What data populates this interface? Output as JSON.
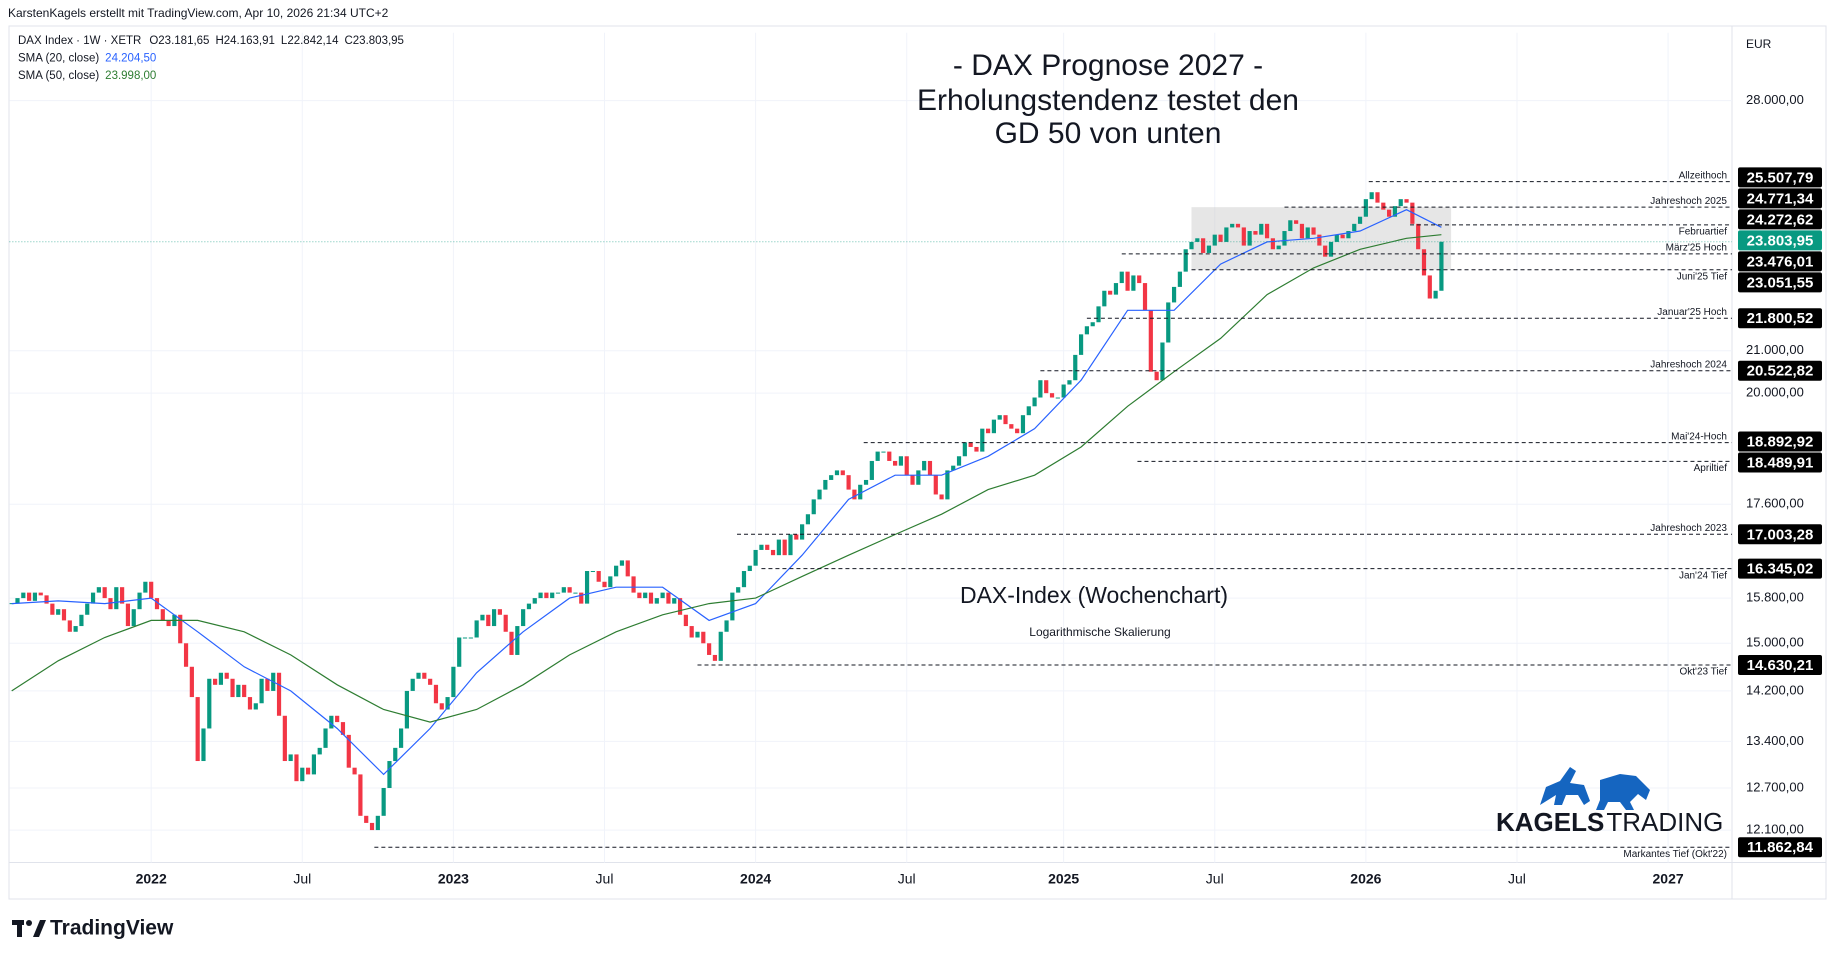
{
  "header": "KarstenKagels erstellt mit TradingView.com, Apr 10, 2026 21:34 UTC+2",
  "footer_brand": "TradingView",
  "chart_data": {
    "type": "candlestick",
    "title_lines": [
      "- DAX Prognose 2027 -",
      "Erholungstendenz testet den",
      "GD 50 von unten"
    ],
    "subtitle": "DAX-Index (Wochenchart)",
    "annotation": "Logarithmische Skalierung",
    "currency": "EUR",
    "legend": {
      "symbol": "DAX Index · 1W · XETR",
      "ohlc": [
        "O23.181,65",
        "H24.163,91",
        "L22.842,14",
        "C23.803,95"
      ]
    },
    "log_scale": true,
    "grid": true,
    "xlim": [
      -0.4,
      296
    ],
    "xticks": [
      {
        "value": 24,
        "label": "2022"
      },
      {
        "value": 50,
        "label": "Jul"
      },
      {
        "value": 76,
        "label": "2023"
      },
      {
        "value": 102,
        "label": "Jul"
      },
      {
        "value": 128,
        "label": "2024"
      },
      {
        "value": 154,
        "label": "Jul"
      },
      {
        "value": 181,
        "label": "2025"
      },
      {
        "value": 207,
        "label": "Jul"
      },
      {
        "value": 233,
        "label": "2026"
      },
      {
        "value": 259,
        "label": "Jul"
      },
      {
        "value": 285,
        "label": "2027"
      }
    ],
    "ylim": [
      11657,
      30273
    ],
    "yticks": [
      {
        "value": 28000,
        "label": "28.000,00"
      },
      {
        "value": 21000,
        "label": "21.000,00"
      },
      {
        "value": 20000,
        "label": "20.000,00"
      },
      {
        "value": 17600,
        "label": "17.600,00"
      },
      {
        "value": 15800,
        "label": "15.800,00"
      },
      {
        "value": 15000,
        "label": "15.000,00"
      },
      {
        "value": 14200,
        "label": "14.200,00"
      },
      {
        "value": 13400,
        "label": "13.400,00"
      },
      {
        "value": 12700,
        "label": "12.700,00"
      },
      {
        "value": 12100,
        "label": "12.100,00"
      }
    ],
    "candles": {
      "up_color": "#089981",
      "down_color": "#f23645",
      "closes": [
        15700,
        15800,
        15900,
        15750,
        15900,
        15850,
        15700,
        15500,
        15600,
        15400,
        15200,
        15300,
        15500,
        15700,
        15900,
        16000,
        15800,
        15600,
        16000,
        15700,
        15300,
        15600,
        15900,
        16100,
        15800,
        15600,
        15400,
        15300,
        15500,
        15000,
        14600,
        14100,
        13100,
        13600,
        14400,
        14300,
        14500,
        14400,
        14100,
        14300,
        14100,
        13900,
        14000,
        14400,
        14200,
        14500,
        13800,
        13100,
        13200,
        12800,
        13000,
        12900,
        13200,
        13300,
        13600,
        13800,
        13700,
        13500,
        13000,
        12900,
        12300,
        12200,
        12100,
        12300,
        12700,
        13100,
        13300,
        13600,
        14200,
        14400,
        14500,
        14400,
        14300,
        14000,
        13900,
        14100,
        14600,
        15100,
        15100,
        15100,
        15400,
        15500,
        15300,
        15600,
        15500,
        15200,
        14800,
        15300,
        15600,
        15700,
        15800,
        15900,
        15800,
        15900,
        15900,
        16000,
        15900,
        15900,
        15700,
        16300,
        16300,
        16100,
        16000,
        16200,
        16400,
        16500,
        16200,
        15900,
        15800,
        15900,
        15700,
        15800,
        15900,
        15700,
        15800,
        15500,
        15300,
        15100,
        15200,
        15000,
        14800,
        14700,
        15200,
        15400,
        15900,
        16000,
        16300,
        16400,
        16700,
        16800,
        16700,
        16600,
        16900,
        16600,
        17000,
        16900,
        17200,
        17400,
        17700,
        17900,
        18100,
        18200,
        18300,
        18200,
        17900,
        17700,
        18000,
        18100,
        18500,
        18700,
        18700,
        18500,
        18400,
        18600,
        18200,
        18000,
        18300,
        18500,
        18200,
        17800,
        17700,
        18300,
        18400,
        18600,
        18900,
        18800,
        18700,
        19200,
        19100,
        19400,
        19500,
        19300,
        19200,
        19100,
        19500,
        19700,
        19900,
        20300,
        20000,
        19900,
        19900,
        20200,
        20300,
        20900,
        21400,
        21600,
        21700,
        22100,
        22500,
        22400,
        22700,
        23000,
        22500,
        22900,
        22700,
        22000,
        20500,
        20300,
        21200,
        22200,
        22600,
        23000,
        23600,
        23800,
        23900,
        23500,
        23700,
        24000,
        23800,
        24200,
        24300,
        24200,
        23700,
        24100,
        24000,
        24300,
        23900,
        23600,
        23700,
        24100,
        24400,
        24300,
        23900,
        24200,
        24000,
        23700,
        23400,
        23800,
        24000,
        23900,
        24100,
        24300,
        24500,
        25000,
        25200,
        24900,
        24700,
        24500,
        24800,
        25000,
        24900,
        24300,
        23600,
        22900,
        22300,
        22500,
        23803.95
      ]
    },
    "series": [
      {
        "name": "SMA (20, close)",
        "color": "#2962ff",
        "value_label": "24.204,50",
        "x": [
          0,
          8,
          16,
          24,
          32,
          40,
          48,
          56,
          64,
          72,
          80,
          88,
          96,
          104,
          112,
          120,
          128,
          136,
          144,
          152,
          160,
          168,
          176,
          184,
          192,
          200,
          208,
          216,
          224,
          232,
          240,
          246
        ],
        "values": [
          15700,
          15750,
          15700,
          15800,
          15200,
          14600,
          14200,
          13600,
          12900,
          13600,
          14500,
          15200,
          15800,
          16000,
          16000,
          15400,
          15700,
          16600,
          17700,
          18200,
          18200,
          18600,
          19200,
          20300,
          22000,
          22000,
          23200,
          23800,
          23900,
          24100,
          24700,
          24204.5
        ]
      },
      {
        "name": "SMA (50, close)",
        "color": "#2e7d32",
        "value_label": "23.998,00",
        "x": [
          0,
          8,
          16,
          24,
          32,
          40,
          48,
          56,
          64,
          72,
          80,
          88,
          96,
          104,
          112,
          120,
          128,
          136,
          144,
          152,
          160,
          168,
          176,
          184,
          192,
          200,
          208,
          216,
          224,
          232,
          240,
          246
        ],
        "values": [
          14200,
          14700,
          15100,
          15400,
          15400,
          15200,
          14800,
          14300,
          13900,
          13700,
          13900,
          14300,
          14800,
          15200,
          15500,
          15700,
          15800,
          16200,
          16600,
          17000,
          17400,
          17900,
          18200,
          18800,
          19700,
          20500,
          21300,
          22400,
          23100,
          23600,
          23900,
          23998
        ]
      }
    ],
    "levels": [
      {
        "name": "Allzeithoch",
        "value": 25507.79,
        "value_label": "25.507,79",
        "start": 233.5
      },
      {
        "name": "Jahreshoch 2025",
        "value": 24771.34,
        "value_label": "24.771,34",
        "start": 219
      },
      {
        "name": "Februartief",
        "value": 24272.62,
        "value_label": "24.272,62",
        "start": 240.6
      },
      {
        "name": "März'25 Hoch",
        "value": 23476.01,
        "value_label": "23.476,01",
        "start": 191
      },
      {
        "name": "Juni'25 Tief",
        "value": 23051.55,
        "value_label": "23.051,55",
        "start": 203
      },
      {
        "name": "Januar'25 Hoch",
        "value": 21800.52,
        "value_label": "21.800,52",
        "start": 185
      },
      {
        "name": "Jahreshoch 2024",
        "value": 20522.82,
        "value_label": "20.522,82",
        "start": 177
      },
      {
        "name": "Mai'24-Hoch",
        "value": 18892.92,
        "value_label": "18.892,92",
        "start": 146.6
      },
      {
        "name": "Apriltief",
        "value": 18489.91,
        "value_label": "18.489,91",
        "start": 193.7
      },
      {
        "name": "Jahreshoch 2023",
        "value": 17003.28,
        "value_label": "17.003,28",
        "start": 124.8
      },
      {
        "name": "Jan'24 Tief",
        "value": 16345.02,
        "value_label": "16.345,02",
        "start": 129
      },
      {
        "name": "Okt'23 Tief",
        "value": 14630.21,
        "value_label": "14.630,21",
        "start": 118
      },
      {
        "name": "Markantes Tief (Okt'22)",
        "value": 11862.84,
        "value_label": "11.862,84",
        "start": 62.4
      }
    ],
    "last_price": {
      "value": 23803.95,
      "label": "23.803,95",
      "color": "#089981"
    },
    "logo": {
      "bold": "KAGELS",
      "regular": "TRADING"
    }
  }
}
